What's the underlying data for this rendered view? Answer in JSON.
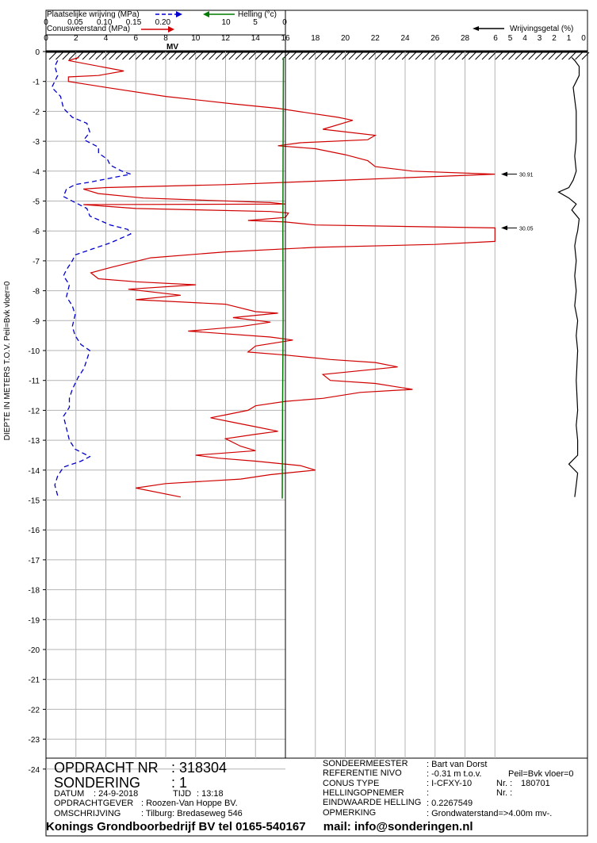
{
  "header": {
    "friction_label": "Plaatselijke wrijving (MPa)",
    "friction_ticks": [
      "0",
      "0.05",
      "0.10",
      "0.15",
      "0.20"
    ],
    "cone_label": "Conusweerstand (MPa)",
    "cone_ticks": [
      "0",
      "2",
      "4",
      "6",
      "8",
      "10",
      "12",
      "14",
      "16",
      "18",
      "20",
      "22",
      "24",
      "26",
      "28"
    ],
    "incl_label": "Helling (°c)",
    "incl_ticks": [
      "10",
      "5",
      "0"
    ],
    "ratio_label": "Wrijvingsgetal (%)",
    "ratio_ticks": [
      "6",
      "5",
      "4",
      "3",
      "2",
      "1",
      "0"
    ],
    "mv_label": "MV",
    "y_axis_label": "DIEPTE IN METERS T.O.V.   Peil=Bvk vloer=0",
    "depth_ticks": [
      "0",
      "-1",
      "-2",
      "-3",
      "-4",
      "-5",
      "-6",
      "-7",
      "-8",
      "-9",
      "-10",
      "-11",
      "-12",
      "-13",
      "-14",
      "-15",
      "-16",
      "-17",
      "-18",
      "-19",
      "-20",
      "-21",
      "-22",
      "-23",
      "-24"
    ],
    "peak_labels": [
      "30.91",
      "30.05"
    ]
  },
  "colors": {
    "cone": "#d00000",
    "friction": "#0000cc",
    "inclination": "#007a00",
    "ratio": "#000000",
    "grid": "#b4b4b4"
  },
  "chart_data": {
    "type": "line",
    "title": "",
    "ylabel": "DIEPTE IN METERS T.O.V.   Peil=Bvk vloer=0",
    "ylim": [
      -24,
      0
    ],
    "series": [
      {
        "name": "Conusweerstand (MPa)",
        "xlim": [
          0,
          30
        ],
        "points": [
          [
            2.2,
            -0.2
          ],
          [
            1.5,
            -0.3
          ],
          [
            5.2,
            -0.65
          ],
          [
            3.5,
            -0.8
          ],
          [
            1.5,
            -0.85
          ],
          [
            1.5,
            -1.0
          ],
          [
            4.0,
            -1.2
          ],
          [
            8.0,
            -1.5
          ],
          [
            12.5,
            -1.75
          ],
          [
            15.5,
            -1.9
          ],
          [
            17.5,
            -2.05
          ],
          [
            19.5,
            -2.2
          ],
          [
            20.5,
            -2.3
          ],
          [
            18.5,
            -2.6
          ],
          [
            22.0,
            -2.8
          ],
          [
            21.5,
            -2.95
          ],
          [
            17.0,
            -3.05
          ],
          [
            15.5,
            -3.15
          ],
          [
            18.0,
            -3.25
          ],
          [
            20.0,
            -3.45
          ],
          [
            21.5,
            -3.65
          ],
          [
            22.0,
            -3.85
          ],
          [
            24.5,
            -4.0
          ],
          [
            30.0,
            -4.1
          ],
          [
            20.0,
            -4.3
          ],
          [
            12.0,
            -4.45
          ],
          [
            4.0,
            -4.55
          ],
          [
            2.5,
            -4.6
          ],
          [
            3.5,
            -4.75
          ],
          [
            6.5,
            -4.9
          ],
          [
            15.0,
            -5.05
          ],
          [
            16.0,
            -5.1
          ],
          [
            2.5,
            -5.12
          ],
          [
            6.0,
            -5.25
          ],
          [
            15.0,
            -5.35
          ],
          [
            16.2,
            -5.4
          ],
          [
            16.0,
            -5.55
          ],
          [
            13.5,
            -5.65
          ],
          [
            16.0,
            -5.7
          ],
          [
            18.0,
            -5.8
          ],
          [
            30.0,
            -5.9
          ],
          [
            30.0,
            -6.35
          ],
          [
            26.0,
            -6.45
          ],
          [
            18.0,
            -6.55
          ],
          [
            12.0,
            -6.7
          ],
          [
            7.0,
            -6.9
          ],
          [
            4.5,
            -7.2
          ],
          [
            3.0,
            -7.4
          ],
          [
            3.5,
            -7.6
          ],
          [
            6.0,
            -7.7
          ],
          [
            10.0,
            -7.8
          ],
          [
            5.5,
            -7.95
          ],
          [
            9.0,
            -8.15
          ],
          [
            6.0,
            -8.3
          ],
          [
            12.0,
            -8.45
          ],
          [
            14.0,
            -8.7
          ],
          [
            15.5,
            -8.75
          ],
          [
            12.5,
            -8.9
          ],
          [
            15.0,
            -9.05
          ],
          [
            13.0,
            -9.2
          ],
          [
            9.5,
            -9.35
          ],
          [
            15.0,
            -9.55
          ],
          [
            16.5,
            -9.65
          ],
          [
            14.0,
            -9.85
          ],
          [
            13.5,
            -10.05
          ],
          [
            16.0,
            -10.15
          ],
          [
            19.0,
            -10.3
          ],
          [
            22.0,
            -10.4
          ],
          [
            23.5,
            -10.55
          ],
          [
            18.5,
            -10.8
          ],
          [
            19.0,
            -11.0
          ],
          [
            22.0,
            -11.1
          ],
          [
            24.5,
            -11.3
          ],
          [
            21.0,
            -11.4
          ],
          [
            18.5,
            -11.6
          ],
          [
            16.0,
            -11.7
          ],
          [
            14.0,
            -11.85
          ],
          [
            13.5,
            -12.0
          ],
          [
            12.0,
            -12.15
          ],
          [
            11.0,
            -12.25
          ],
          [
            12.5,
            -12.4
          ],
          [
            14.0,
            -12.55
          ],
          [
            15.5,
            -12.7
          ],
          [
            14.0,
            -12.8
          ],
          [
            12.0,
            -12.95
          ],
          [
            13.0,
            -13.2
          ],
          [
            14.0,
            -13.35
          ],
          [
            10.0,
            -13.5
          ],
          [
            11.5,
            -13.6
          ],
          [
            14.0,
            -13.7
          ],
          [
            17.0,
            -13.85
          ],
          [
            18.0,
            -14.0
          ],
          [
            15.0,
            -14.15
          ],
          [
            13.0,
            -14.3
          ],
          [
            8.0,
            -14.45
          ],
          [
            6.0,
            -14.6
          ],
          [
            9.0,
            -14.9
          ]
        ]
      },
      {
        "name": "Plaatselijke wrijving (MPa)",
        "xlim": [
          0,
          0.25
        ],
        "points": [
          [
            0.02,
            -0.3
          ],
          [
            0.015,
            -0.5
          ],
          [
            0.02,
            -0.8
          ],
          [
            0.01,
            -1.2
          ],
          [
            0.025,
            -1.5
          ],
          [
            0.03,
            -1.9
          ],
          [
            0.045,
            -2.2
          ],
          [
            0.07,
            -2.4
          ],
          [
            0.075,
            -2.7
          ],
          [
            0.065,
            -2.95
          ],
          [
            0.09,
            -3.2
          ],
          [
            0.09,
            -3.4
          ],
          [
            0.105,
            -3.6
          ],
          [
            0.11,
            -3.8
          ],
          [
            0.13,
            -4.0
          ],
          [
            0.145,
            -4.1
          ],
          [
            0.08,
            -4.35
          ],
          [
            0.05,
            -4.45
          ],
          [
            0.035,
            -4.6
          ],
          [
            0.03,
            -4.85
          ],
          [
            0.05,
            -5.05
          ],
          [
            0.07,
            -5.25
          ],
          [
            0.075,
            -5.5
          ],
          [
            0.11,
            -5.8
          ],
          [
            0.14,
            -5.95
          ],
          [
            0.145,
            -6.1
          ],
          [
            0.11,
            -6.4
          ],
          [
            0.08,
            -6.6
          ],
          [
            0.05,
            -6.8
          ],
          [
            0.045,
            -7.0
          ],
          [
            0.035,
            -7.3
          ],
          [
            0.03,
            -7.5
          ],
          [
            0.04,
            -7.8
          ],
          [
            0.035,
            -8.2
          ],
          [
            0.045,
            -8.5
          ],
          [
            0.05,
            -8.8
          ],
          [
            0.045,
            -9.2
          ],
          [
            0.05,
            -9.5
          ],
          [
            0.06,
            -9.8
          ],
          [
            0.075,
            -10.0
          ],
          [
            0.07,
            -10.3
          ],
          [
            0.065,
            -10.6
          ],
          [
            0.055,
            -10.9
          ],
          [
            0.045,
            -11.3
          ],
          [
            0.04,
            -11.6
          ],
          [
            0.04,
            -11.9
          ],
          [
            0.03,
            -12.2
          ],
          [
            0.035,
            -12.6
          ],
          [
            0.04,
            -13.0
          ],
          [
            0.05,
            -13.3
          ],
          [
            0.075,
            -13.55
          ],
          [
            0.06,
            -13.7
          ],
          [
            0.03,
            -13.9
          ],
          [
            0.02,
            -14.2
          ],
          [
            0.015,
            -14.5
          ],
          [
            0.02,
            -14.85
          ]
        ]
      },
      {
        "name": "Helling (°c)",
        "xlim": [
          15,
          0
        ],
        "points": [
          [
            0.2,
            -0.2
          ],
          [
            0.25,
            -3.0
          ],
          [
            0.3,
            -6.0
          ],
          [
            0.25,
            -9.0
          ],
          [
            0.35,
            -12.0
          ],
          [
            0.4,
            -14.95
          ]
        ]
      },
      {
        "name": "Wrijvingsgetal (%)",
        "xlim": [
          6,
          0
        ],
        "points": [
          [
            0.8,
            -0.2
          ],
          [
            0.6,
            -0.3
          ],
          [
            0.3,
            -0.5
          ],
          [
            0.3,
            -0.8
          ],
          [
            0.5,
            -1.0
          ],
          [
            0.7,
            -1.2
          ],
          [
            0.6,
            -1.6
          ],
          [
            0.5,
            -2.0
          ],
          [
            0.5,
            -3.0
          ],
          [
            0.6,
            -3.5
          ],
          [
            0.5,
            -4.0
          ],
          [
            0.7,
            -4.3
          ],
          [
            1.0,
            -4.55
          ],
          [
            1.7,
            -4.7
          ],
          [
            1.0,
            -4.9
          ],
          [
            0.5,
            -5.1
          ],
          [
            0.8,
            -5.3
          ],
          [
            0.3,
            -5.6
          ],
          [
            0.4,
            -6.0
          ],
          [
            0.5,
            -6.2
          ],
          [
            0.6,
            -6.5
          ],
          [
            0.5,
            -7.0
          ],
          [
            0.6,
            -7.5
          ],
          [
            0.5,
            -8.0
          ],
          [
            0.6,
            -8.5
          ],
          [
            0.4,
            -9.0
          ],
          [
            0.5,
            -9.5
          ],
          [
            0.4,
            -10.0
          ],
          [
            0.5,
            -11.0
          ],
          [
            0.4,
            -12.0
          ],
          [
            0.5,
            -12.5
          ],
          [
            0.4,
            -13.0
          ],
          [
            0.4,
            -13.5
          ],
          [
            1.0,
            -13.8
          ],
          [
            0.4,
            -14.1
          ],
          [
            0.5,
            -14.5
          ],
          [
            0.6,
            -14.9
          ]
        ]
      }
    ],
    "annotations": [
      {
        "text": "30.91",
        "depth": -4.1
      },
      {
        "text": "30.05",
        "depth": -5.9
      }
    ]
  },
  "info": {
    "opdracht_label": "OPDRACHT NR",
    "opdracht_value": ": 318304",
    "sondering_label": "SONDERING",
    "sondering_value": ": 1",
    "datum_label": "DATUM",
    "datum_value": ":  24-9-2018",
    "tijd_label": "TIJD",
    "tijd_value": ":  13:18",
    "opdrachtgever_label": "OPDRACHTGEVER",
    "opdrachtgever_value": ":  Roozen-Van Hoppe BV.",
    "omschrijving_label": "OMSCHRIJVING",
    "omschrijving_value": ":  Tilburg: Bredaseweg 546",
    "sondeermeester_label": "SONDEERMEESTER",
    "sondeermeester_value": ":  Bart van Dorst",
    "referentie_label": "REFERENTIE NIVO",
    "referentie_value": ":  -0.31  m t.o.v.",
    "peil_value": "Peil=Bvk vloer=0",
    "conus_label": "CONUS TYPE",
    "conus_value": ":  I-CFXY-10",
    "nr1_label": "Nr. :",
    "nr1_value": "180701",
    "helling_label": "HELLINGOPNEMER",
    "helling_value": ":",
    "nr2_label": "Nr. :",
    "eind_label": "EINDWAARDE HELLING",
    "eind_value": ":  0.2267549",
    "opmerking_label": "OPMERKING",
    "opmerking_value": ":  Grondwaterstand=>4.00m mv-."
  },
  "footer": {
    "company": "Konings Grondboorbedrijf BV tel 0165-540167",
    "mail": "mail: info@sonderingen.nl"
  }
}
